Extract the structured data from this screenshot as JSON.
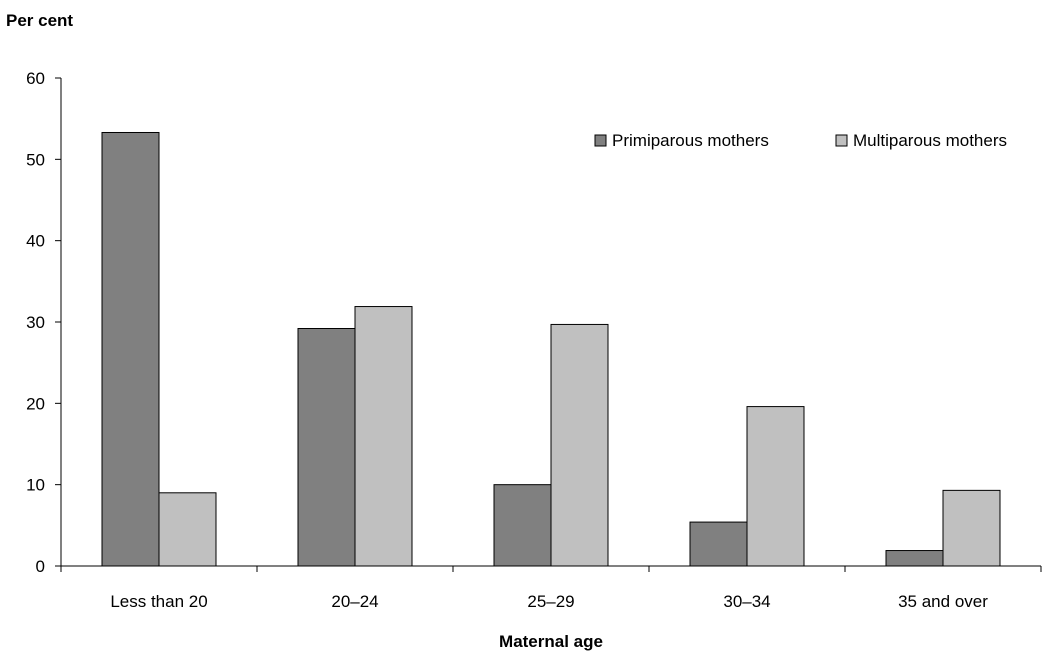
{
  "chart_data": {
    "type": "bar",
    "title": "",
    "ylabel": "Per cent",
    "xlabel": "Maternal age",
    "ylim": [
      0,
      60
    ],
    "yticks": [
      0,
      10,
      20,
      30,
      40,
      50,
      60
    ],
    "grid": false,
    "legend_position": "top-right",
    "categories": [
      "Less than 20",
      "20–24",
      "25–29",
      "30–34",
      "35 and over"
    ],
    "series": [
      {
        "name": "Primiparous mothers",
        "color": "#808080",
        "values": [
          53.3,
          29.2,
          10.0,
          5.4,
          1.9
        ]
      },
      {
        "name": "Multiparous mothers",
        "color": "#c0c0c0",
        "values": [
          9.0,
          31.9,
          29.7,
          19.6,
          9.3
        ]
      }
    ]
  }
}
